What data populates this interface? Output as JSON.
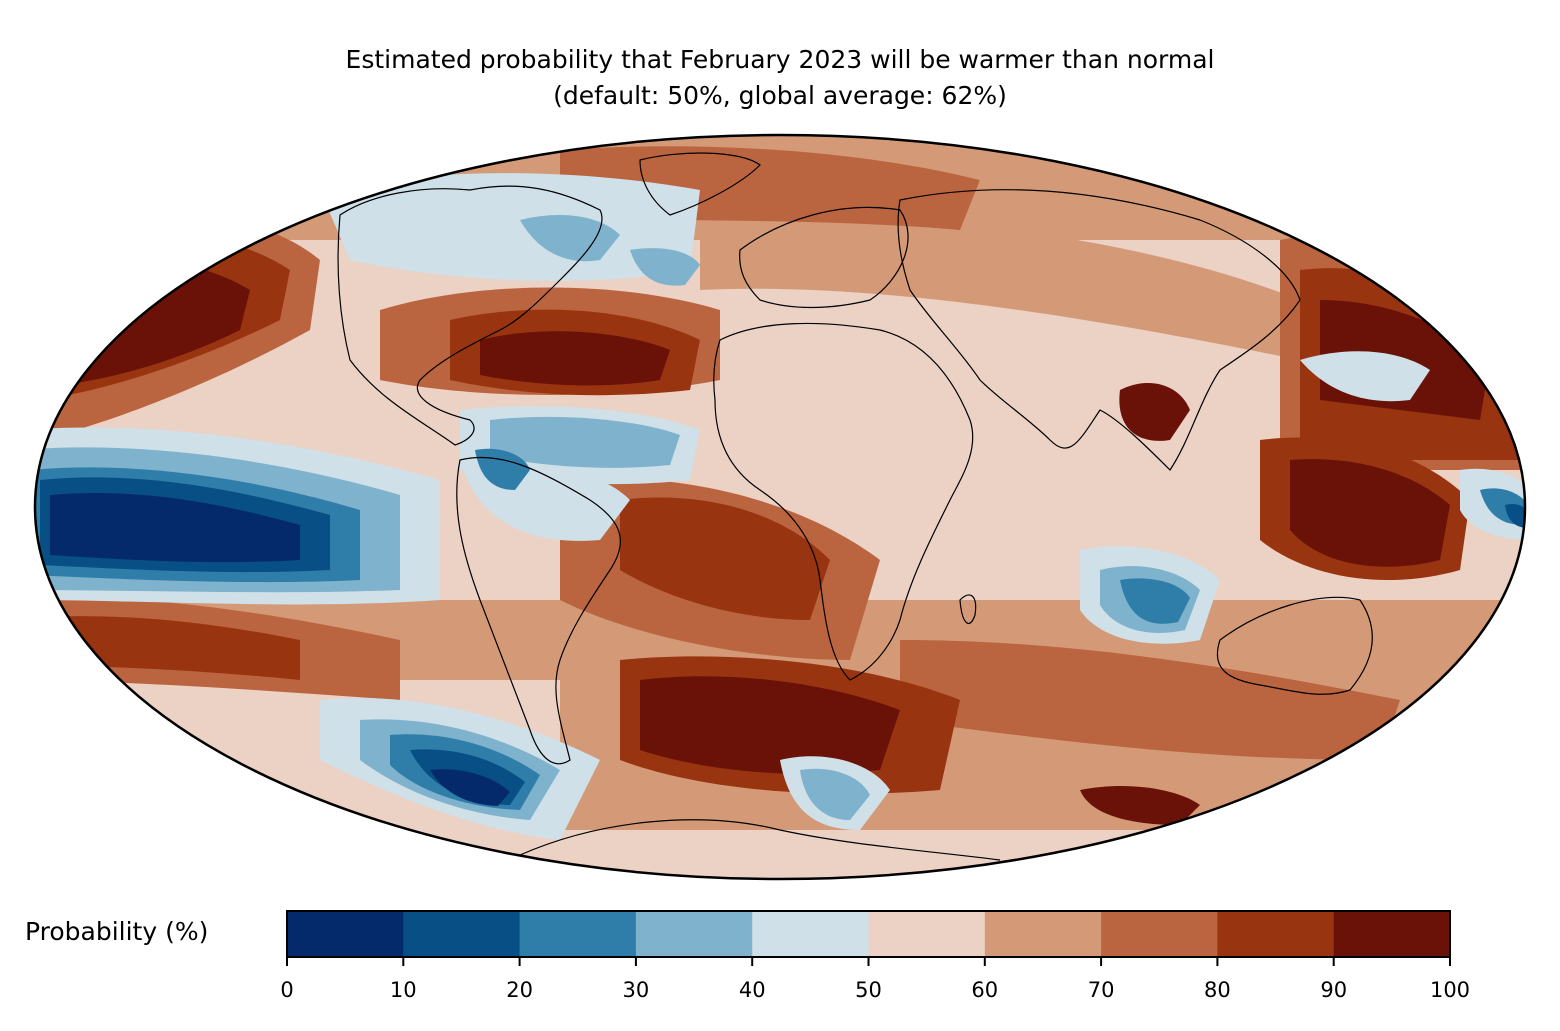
{
  "title": {
    "line1": "Estimated probability that February 2023 will be warmer than normal",
    "line2": "(default: 50%, global average: 62%)"
  },
  "map": {
    "projection": "mollweide",
    "variable": "probability of above-normal temperature"
  },
  "colorbar": {
    "label": "Probability (%)",
    "ticks": [
      "0",
      "10",
      "20",
      "30",
      "40",
      "50",
      "60",
      "70",
      "80",
      "90",
      "100"
    ],
    "bins": [
      {
        "range": "0-10",
        "color": "#052a6b"
      },
      {
        "range": "10-20",
        "color": "#084f86"
      },
      {
        "range": "20-30",
        "color": "#2f7ea9"
      },
      {
        "range": "30-40",
        "color": "#7eb2cd"
      },
      {
        "range": "40-50",
        "color": "#cfe0e8"
      },
      {
        "range": "50-60",
        "color": "#ecd1c5"
      },
      {
        "range": "60-70",
        "color": "#d49a77"
      },
      {
        "range": "70-80",
        "color": "#bb6540"
      },
      {
        "range": "80-90",
        "color": "#993410"
      },
      {
        "range": "90-100",
        "color": "#6b1208"
      }
    ]
  }
}
